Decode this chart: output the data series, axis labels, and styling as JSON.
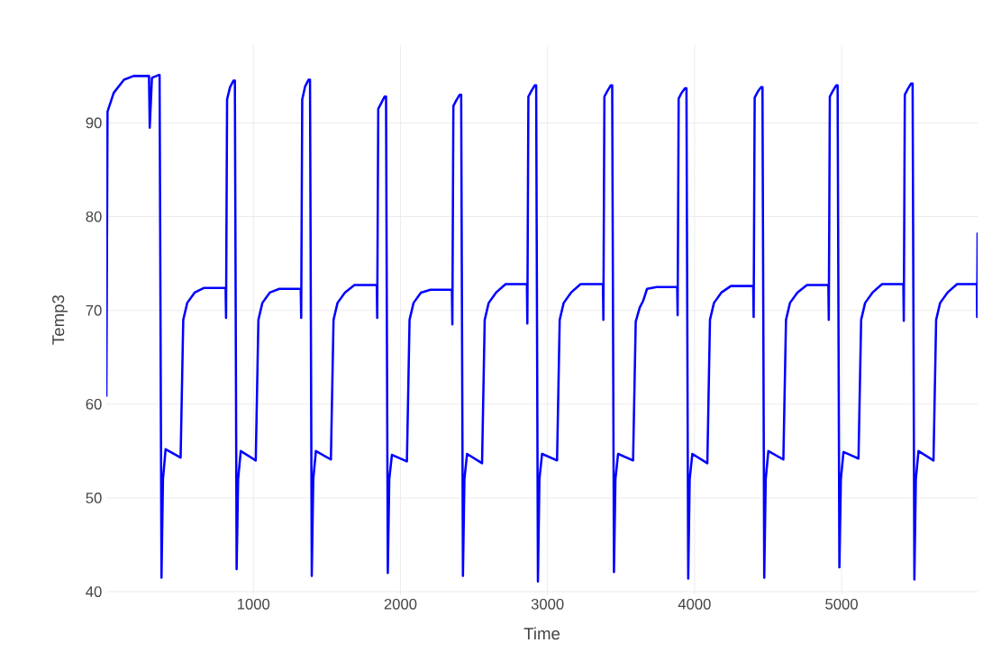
{
  "chart_data": {
    "type": "line",
    "xlabel": "Time",
    "ylabel": "Temp3",
    "grid": true,
    "xlim": [
      0,
      5925
    ],
    "ylim": [
      39.7,
      98.3
    ],
    "xticks": [
      1000,
      2000,
      3000,
      4000,
      5000
    ],
    "yticks": [
      40,
      50,
      60,
      70,
      80,
      90
    ],
    "series": [
      {
        "color": "#0000ff",
        "x": [
          0,
          8,
          50,
          120,
          185,
          290,
          295,
          310,
          355,
          362,
          375,
          385,
          403,
          505,
          523,
          550,
          600,
          665,
          811,
          814,
          821,
          841,
          864,
          874,
          886,
          896,
          914,
          1016,
          1034,
          1061,
          1111,
          1176,
          1322,
          1325,
          1332,
          1352,
          1375,
          1385,
          1397,
          1407,
          1425,
          1527,
          1545,
          1572,
          1622,
          1687,
          1839,
          1842,
          1849,
          1869,
          1892,
          1902,
          1914,
          1924,
          1942,
          2044,
          2062,
          2089,
          2139,
          2204,
          2350,
          2353,
          2360,
          2380,
          2403,
          2413,
          2425,
          2435,
          2453,
          2555,
          2573,
          2600,
          2650,
          2715,
          2860,
          2863,
          2870,
          2890,
          2913,
          2923,
          2935,
          2945,
          2963,
          3065,
          3083,
          3110,
          3160,
          3225,
          3377,
          3380,
          3387,
          3407,
          3430,
          3440,
          3452,
          3462,
          3480,
          3582,
          3600,
          3627,
          3650,
          3677,
          3742,
          3882,
          3885,
          3892,
          3912,
          3935,
          3945,
          3957,
          3967,
          3985,
          4087,
          4105,
          4132,
          4182,
          4247,
          4399,
          4402,
          4409,
          4429,
          4452,
          4462,
          4474,
          4484,
          4502,
          4604,
          4622,
          4649,
          4699,
          4764,
          4910,
          4913,
          4920,
          4940,
          4963,
          4973,
          4985,
          4995,
          5013,
          5115,
          5133,
          5160,
          5210,
          5275,
          5420,
          5423,
          5430,
          5450,
          5473,
          5483,
          5495,
          5505,
          5523,
          5625,
          5643,
          5670,
          5720,
          5785,
          5920,
          5922,
          5925
        ],
        "values": [
          60.8,
          91.2,
          93.2,
          94.6,
          95.0,
          95.0,
          89.5,
          94.8,
          95.1,
          95.1,
          41.5,
          52,
          55.2,
          54.3,
          69,
          70.8,
          71.9,
          72.4,
          72.4,
          69.2,
          92.5,
          93.8,
          94.5,
          94.5,
          42.4,
          52,
          55.0,
          54.0,
          69,
          70.8,
          71.9,
          72.3,
          72.3,
          69.2,
          92.5,
          93.9,
          94.6,
          94.6,
          41.7,
          52,
          55.0,
          54.1,
          69,
          70.8,
          71.9,
          72.7,
          72.7,
          69.2,
          91.5,
          92.1,
          92.8,
          92.8,
          42.0,
          52,
          54.6,
          53.9,
          69,
          70.8,
          71.9,
          72.2,
          72.2,
          68.5,
          91.8,
          92.4,
          93.0,
          93.0,
          41.7,
          52,
          54.7,
          53.7,
          69,
          70.8,
          71.9,
          72.8,
          72.8,
          68.6,
          92.8,
          93.4,
          94.0,
          94.0,
          41.1,
          52,
          54.7,
          54.0,
          69,
          70.8,
          71.9,
          72.8,
          72.8,
          69.0,
          92.8,
          93.4,
          94.0,
          94.0,
          42.1,
          52,
          54.7,
          54.0,
          68.8,
          70.3,
          71.0,
          72.3,
          72.5,
          72.5,
          69.5,
          92.6,
          93.2,
          93.7,
          93.7,
          41.4,
          52,
          54.7,
          53.7,
          69,
          70.8,
          71.9,
          72.6,
          72.6,
          69.3,
          92.7,
          93.3,
          93.8,
          93.8,
          41.5,
          52,
          55.0,
          54.1,
          69,
          70.8,
          71.9,
          72.7,
          72.7,
          69.0,
          92.8,
          93.4,
          94.0,
          94.0,
          42.6,
          52,
          54.9,
          54.2,
          69,
          70.8,
          71.9,
          72.8,
          72.8,
          68.9,
          93.0,
          93.6,
          94.2,
          94.2,
          41.3,
          52,
          55.0,
          54.0,
          69,
          70.8,
          71.9,
          72.8,
          72.8,
          69.3,
          78.3
        ]
      }
    ]
  }
}
